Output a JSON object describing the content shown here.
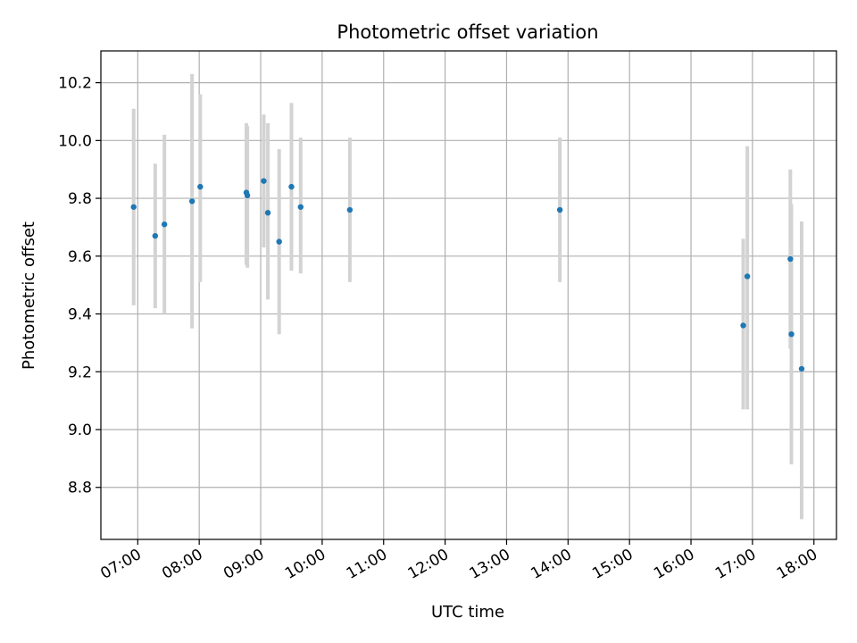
{
  "chart_data": {
    "type": "scatter",
    "title": "Photometric offset variation",
    "xlabel": "UTC time",
    "ylabel": "Photometric offset",
    "x_tick_labels": [
      "07:00",
      "08:00",
      "09:00",
      "10:00",
      "11:00",
      "12:00",
      "13:00",
      "14:00",
      "15:00",
      "16:00",
      "17:00",
      "18:00"
    ],
    "y_tick_labels": [
      "8.8",
      "9.0",
      "9.2",
      "9.4",
      "9.6",
      "9.8",
      "10.0",
      "10.2"
    ],
    "xlim": [
      "06:24",
      "18:22"
    ],
    "ylim": [
      8.62,
      10.31
    ],
    "grid": true,
    "colors": {
      "point": "#1f77b4",
      "error_bar": "#d3d3d3",
      "grid": "#b0b0b0"
    },
    "points": [
      {
        "time": "06:56",
        "y": 9.77,
        "err_low": 9.43,
        "err_high": 10.11
      },
      {
        "time": "07:17",
        "y": 9.67,
        "err_low": 9.42,
        "err_high": 9.92
      },
      {
        "time": "07:26",
        "y": 9.71,
        "err_low": 9.4,
        "err_high": 10.02
      },
      {
        "time": "07:53",
        "y": 9.79,
        "err_low": 9.35,
        "err_high": 10.23
      },
      {
        "time": "08:01",
        "y": 9.84,
        "err_low": 9.51,
        "err_high": 10.16
      },
      {
        "time": "08:46",
        "y": 9.82,
        "err_low": 9.57,
        "err_high": 10.06
      },
      {
        "time": "08:47",
        "y": 9.81,
        "err_low": 9.56,
        "err_high": 10.05
      },
      {
        "time": "09:03",
        "y": 9.86,
        "err_low": 9.63,
        "err_high": 10.09
      },
      {
        "time": "09:07",
        "y": 9.75,
        "err_low": 9.45,
        "err_high": 10.06
      },
      {
        "time": "09:18",
        "y": 9.65,
        "err_low": 9.33,
        "err_high": 9.97
      },
      {
        "time": "09:30",
        "y": 9.84,
        "err_low": 9.55,
        "err_high": 10.13
      },
      {
        "time": "09:39",
        "y": 9.77,
        "err_low": 9.54,
        "err_high": 10.01
      },
      {
        "time": "10:27",
        "y": 9.76,
        "err_low": 9.51,
        "err_high": 10.01
      },
      {
        "time": "13:52",
        "y": 9.76,
        "err_low": 9.51,
        "err_high": 10.01
      },
      {
        "time": "16:51",
        "y": 9.36,
        "err_low": 9.07,
        "err_high": 9.66
      },
      {
        "time": "16:55",
        "y": 9.53,
        "err_low": 9.07,
        "err_high": 9.98
      },
      {
        "time": "17:37",
        "y": 9.59,
        "err_low": 9.28,
        "err_high": 9.9
      },
      {
        "time": "17:38",
        "y": 9.33,
        "err_low": 8.88,
        "err_high": 9.78
      },
      {
        "time": "17:48",
        "y": 9.21,
        "err_low": 8.69,
        "err_high": 9.72
      }
    ]
  }
}
